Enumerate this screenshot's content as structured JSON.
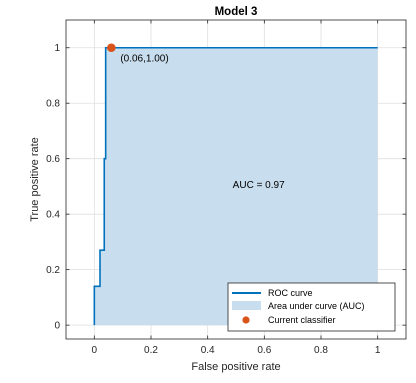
{
  "chart_data": {
    "type": "area",
    "title": "Model 3",
    "xlabel": "False positive rate",
    "ylabel": "True positive rate",
    "xlim": [
      -0.1,
      1.1
    ],
    "ylim": [
      -0.05,
      1.1
    ],
    "xticks": [
      0,
      0.2,
      0.4,
      0.6,
      0.8,
      1
    ],
    "xtick_labels": [
      "0",
      "0.2",
      "0.4",
      "0.6",
      "0.8",
      "1"
    ],
    "yticks": [
      0,
      0.2,
      0.4,
      0.6,
      0.8,
      1
    ],
    "ytick_labels": [
      "0",
      "0.2",
      "0.4",
      "0.6",
      "0.8",
      "1"
    ],
    "grid": true,
    "roc_curve": {
      "name": "ROC curve",
      "x": [
        0,
        0,
        0.02,
        0.02,
        0.035,
        0.035,
        0.04,
        0.04,
        1
      ],
      "y": [
        0,
        0.14,
        0.14,
        0.27,
        0.27,
        0.6,
        0.6,
        1,
        1
      ]
    },
    "auc_area_label": "Area under curve (AUC)",
    "current_classifier": {
      "name": "Current classifier",
      "x": 0.06,
      "y": 1.0,
      "label": "(0.06,1.00)"
    },
    "auc_text": "AUC = 0.97",
    "legend_position": "bottom-right",
    "colors": {
      "curve": "#0072BD",
      "area": "#C8DDED",
      "marker": "#D95319",
      "grid": "#dfdfdf",
      "axes": "#262626"
    }
  }
}
